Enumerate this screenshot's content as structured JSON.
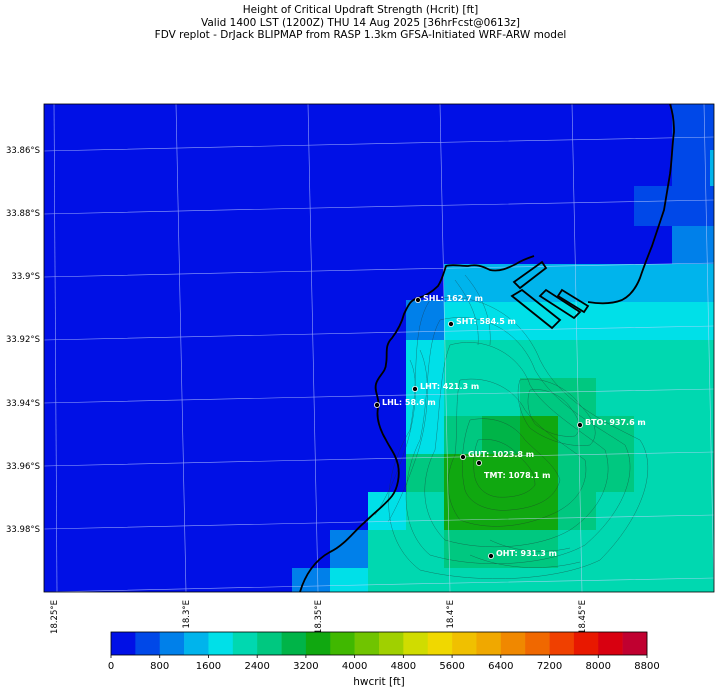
{
  "header": {
    "line1": "Height of Critical Updraft Strength (Hcrit) [ft]",
    "line2": "Valid 1400 LST (1200Z) THU 14 Aug 2025 [36hrFcst@0613z]",
    "line3": "FDV replot - DrJack BLIPMAP from RASP 1.3km GFSA-Initiated WRF-ARW model"
  },
  "lat_labels": [
    "33.86°S",
    "33.88°S",
    "33.9°S",
    "33.92°S",
    "33.94°S",
    "33.96°S",
    "33.98°S"
  ],
  "lon_labels": [
    "18.25°E",
    "18.3°E",
    "18.35°E",
    "18.4°E",
    "18.45°E"
  ],
  "colorbar": {
    "label": "hwcrit [ft]",
    "ticks": [
      "0",
      "800",
      "1600",
      "2400",
      "3200",
      "4000",
      "4800",
      "5600",
      "6400",
      "7200",
      "8000",
      "8800"
    ],
    "colors": [
      "#0010e6",
      "#0048e8",
      "#0080ea",
      "#00b4ec",
      "#00e0e8",
      "#00d8b0",
      "#00c880",
      "#00b448",
      "#10a810",
      "#40b800",
      "#70c400",
      "#a0d000",
      "#d0dc00",
      "#f0d800",
      "#f0c000",
      "#f0a800",
      "#f08800",
      "#f06800",
      "#f04000",
      "#e81800",
      "#d80010",
      "#c00030"
    ]
  },
  "stations": [
    {
      "code": "SHL",
      "label": "SHL: 162.7 m"
    },
    {
      "code": "SHT",
      "label": "SHT: 584.5 m"
    },
    {
      "code": "LHT",
      "label": "LHT: 421.3 m"
    },
    {
      "code": "LHL",
      "label": "LHL: 58.6 m"
    },
    {
      "code": "BTO",
      "label": "BTO: 937.6 m"
    },
    {
      "code": "GUT",
      "label": "GUT: 1023.8 m"
    },
    {
      "code": "TMT",
      "label": "TMT: 1078.1 m"
    },
    {
      "code": "OHT",
      "label": "OHT: 931.3 m"
    }
  ]
}
